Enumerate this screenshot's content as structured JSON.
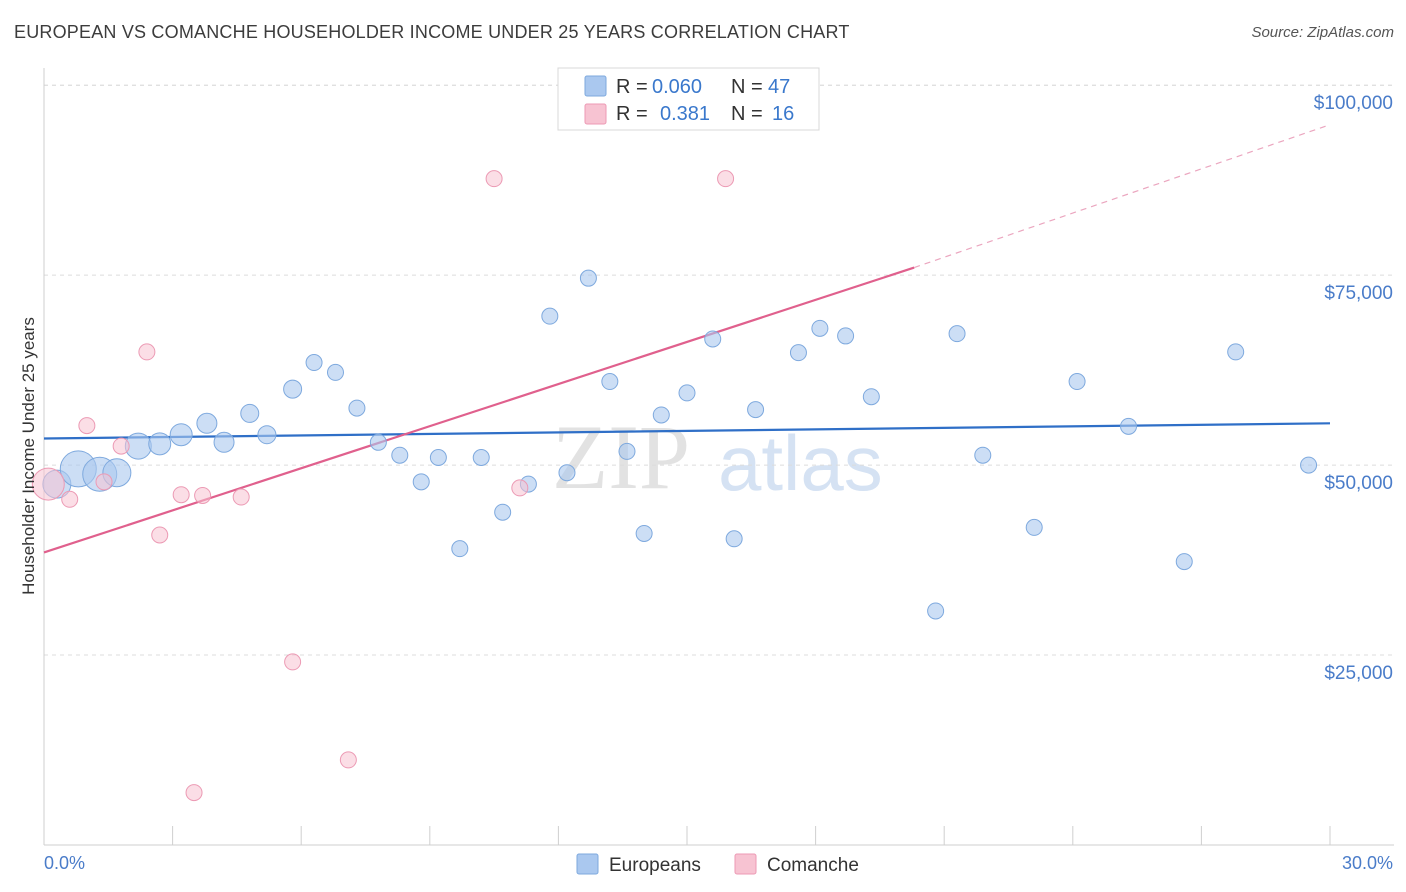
{
  "header": {
    "title": "EUROPEAN VS COMANCHE HOUSEHOLDER INCOME UNDER 25 YEARS CORRELATION CHART",
    "source": "Source: ZipAtlas.com"
  },
  "watermark": {
    "zip": "ZIP",
    "atlas": "atlas"
  },
  "colors": {
    "europeans_fill": "#aac8ef",
    "europeans_stroke": "#7ea9de",
    "europeans_line": "#2f6fc7",
    "comanche_fill": "#f7c3d2",
    "comanche_stroke": "#ec9ab4",
    "comanche_line": "#e0608d",
    "tick_text": "#4a7cc9",
    "grid": "#dcdcdc"
  },
  "legend_top": {
    "rows": [
      {
        "r_label": "R =",
        "r_value": "0.060",
        "n_label": "N =",
        "n_value": "47"
      },
      {
        "r_label": "R =",
        "r_value": "0.381",
        "n_label": "N =",
        "n_value": "16"
      }
    ]
  },
  "legend_bottom": {
    "europeans": "Europeans",
    "comanche": "Comanche"
  },
  "chart_data": {
    "type": "scatter",
    "title": "EUROPEAN VS COMANCHE HOUSEHOLDER INCOME UNDER 25 YEARS CORRELATION CHART",
    "xlabel": "",
    "ylabel": "Householder Income Under 25 years",
    "xlim": [
      0,
      30
    ],
    "ylim": [
      0,
      102000
    ],
    "x_tick_labels": [
      "0.0%",
      "30.0%"
    ],
    "y_ticks": [
      25000,
      50000,
      75000,
      100000
    ],
    "y_tick_labels": [
      "$25,000",
      "$50,000",
      "$75,000",
      "$100,000"
    ],
    "grid": true,
    "legend_position": "top-center",
    "series": [
      {
        "name": "Europeans",
        "R": 0.06,
        "N": 47,
        "trend": {
          "x": [
            0,
            30
          ],
          "y": [
            53500,
            55500
          ]
        },
        "points": [
          {
            "x": 0.3,
            "y": 47500,
            "s": 14
          },
          {
            "x": 0.8,
            "y": 49500,
            "s": 18
          },
          {
            "x": 1.3,
            "y": 48800,
            "s": 17
          },
          {
            "x": 1.7,
            "y": 49000,
            "s": 14
          },
          {
            "x": 2.2,
            "y": 52500,
            "s": 13
          },
          {
            "x": 2.7,
            "y": 52800,
            "s": 11
          },
          {
            "x": 3.2,
            "y": 54000,
            "s": 11
          },
          {
            "x": 3.8,
            "y": 55500,
            "s": 10
          },
          {
            "x": 4.2,
            "y": 53000,
            "s": 10
          },
          {
            "x": 4.8,
            "y": 56800,
            "s": 9
          },
          {
            "x": 5.2,
            "y": 54000,
            "s": 9
          },
          {
            "x": 5.8,
            "y": 60000,
            "s": 9
          },
          {
            "x": 6.3,
            "y": 63500,
            "s": 8
          },
          {
            "x": 6.8,
            "y": 62200,
            "s": 8
          },
          {
            "x": 7.3,
            "y": 57500,
            "s": 8
          },
          {
            "x": 7.8,
            "y": 53000,
            "s": 8
          },
          {
            "x": 8.3,
            "y": 51300,
            "s": 8
          },
          {
            "x": 8.8,
            "y": 47800,
            "s": 8
          },
          {
            "x": 9.2,
            "y": 51000,
            "s": 8
          },
          {
            "x": 9.7,
            "y": 39000,
            "s": 8
          },
          {
            "x": 10.2,
            "y": 51000,
            "s": 8
          },
          {
            "x": 10.7,
            "y": 43800,
            "s": 8
          },
          {
            "x": 11.3,
            "y": 47500,
            "s": 8
          },
          {
            "x": 11.8,
            "y": 69600,
            "s": 8
          },
          {
            "x": 12.2,
            "y": 49000,
            "s": 8
          },
          {
            "x": 12.7,
            "y": 74600,
            "s": 8
          },
          {
            "x": 13.2,
            "y": 61000,
            "s": 8
          },
          {
            "x": 13.6,
            "y": 51800,
            "s": 8
          },
          {
            "x": 14.0,
            "y": 41000,
            "s": 8
          },
          {
            "x": 14.4,
            "y": 56600,
            "s": 8
          },
          {
            "x": 15.0,
            "y": 59500,
            "s": 8
          },
          {
            "x": 15.6,
            "y": 66600,
            "s": 8
          },
          {
            "x": 16.1,
            "y": 40300,
            "s": 8
          },
          {
            "x": 16.6,
            "y": 57300,
            "s": 8
          },
          {
            "x": 17.6,
            "y": 64800,
            "s": 8
          },
          {
            "x": 18.1,
            "y": 68000,
            "s": 8
          },
          {
            "x": 18.7,
            "y": 67000,
            "s": 8
          },
          {
            "x": 19.3,
            "y": 59000,
            "s": 8
          },
          {
            "x": 20.8,
            "y": 30800,
            "s": 8
          },
          {
            "x": 21.3,
            "y": 67300,
            "s": 8
          },
          {
            "x": 21.9,
            "y": 51300,
            "s": 8
          },
          {
            "x": 23.1,
            "y": 41800,
            "s": 8
          },
          {
            "x": 24.1,
            "y": 61000,
            "s": 8
          },
          {
            "x": 25.3,
            "y": 55100,
            "s": 8
          },
          {
            "x": 26.6,
            "y": 37300,
            "s": 8
          },
          {
            "x": 27.8,
            "y": 64900,
            "s": 8
          },
          {
            "x": 29.5,
            "y": 50000,
            "s": 8
          }
        ]
      },
      {
        "name": "Comanche",
        "R": 0.381,
        "N": 16,
        "trend": {
          "x": [
            0,
            20.3
          ],
          "y": [
            38500,
            76000
          ]
        },
        "trend_dashed": {
          "x": [
            20.3,
            30
          ],
          "y": [
            76000,
            94800
          ]
        },
        "points": [
          {
            "x": 0.1,
            "y": 47500,
            "s": 16
          },
          {
            "x": 0.6,
            "y": 45500,
            "s": 8
          },
          {
            "x": 1.0,
            "y": 55200,
            "s": 8
          },
          {
            "x": 1.4,
            "y": 47800,
            "s": 8
          },
          {
            "x": 1.8,
            "y": 52500,
            "s": 8
          },
          {
            "x": 2.4,
            "y": 64900,
            "s": 8
          },
          {
            "x": 2.7,
            "y": 40800,
            "s": 8
          },
          {
            "x": 3.2,
            "y": 46100,
            "s": 8
          },
          {
            "x": 3.5,
            "y": 6900,
            "s": 8
          },
          {
            "x": 3.7,
            "y": 46000,
            "s": 8
          },
          {
            "x": 4.6,
            "y": 45800,
            "s": 8
          },
          {
            "x": 5.8,
            "y": 24100,
            "s": 8
          },
          {
            "x": 7.1,
            "y": 11200,
            "s": 8
          },
          {
            "x": 10.5,
            "y": 87700,
            "s": 8
          },
          {
            "x": 11.1,
            "y": 47000,
            "s": 8
          },
          {
            "x": 15.9,
            "y": 87700,
            "s": 8
          }
        ]
      }
    ]
  }
}
